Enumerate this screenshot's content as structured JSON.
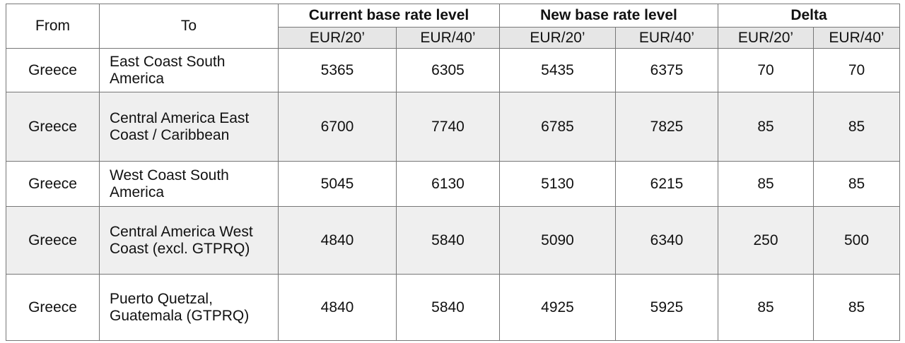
{
  "table": {
    "header": {
      "from": "From",
      "to": "To",
      "groups": [
        "Current base rate level",
        "New base rate level",
        "Delta"
      ],
      "subheaders": [
        "EUR/20’",
        "EUR/40’",
        "EUR/20’",
        "EUR/40’",
        "EUR/20’",
        "EUR/40’"
      ]
    },
    "rows": [
      [
        "Greece",
        "East Coast South America",
        5365,
        6305,
        5435,
        6375,
        70,
        70
      ],
      [
        "Greece",
        "Central America East Coast / Caribbean",
        6700,
        7740,
        6785,
        7825,
        85,
        85
      ],
      [
        "Greece",
        "West Coast South America",
        5045,
        6130,
        5130,
        6215,
        85,
        85
      ],
      [
        "Greece",
        "Central America West Coast (excl. GTPRQ)",
        4840,
        5840,
        5090,
        6340,
        250,
        500
      ],
      [
        "Greece",
        "Puerto Quetzal, Guatemala (GTPRQ)",
        4840,
        5840,
        4925,
        5925,
        85,
        85
      ]
    ]
  }
}
